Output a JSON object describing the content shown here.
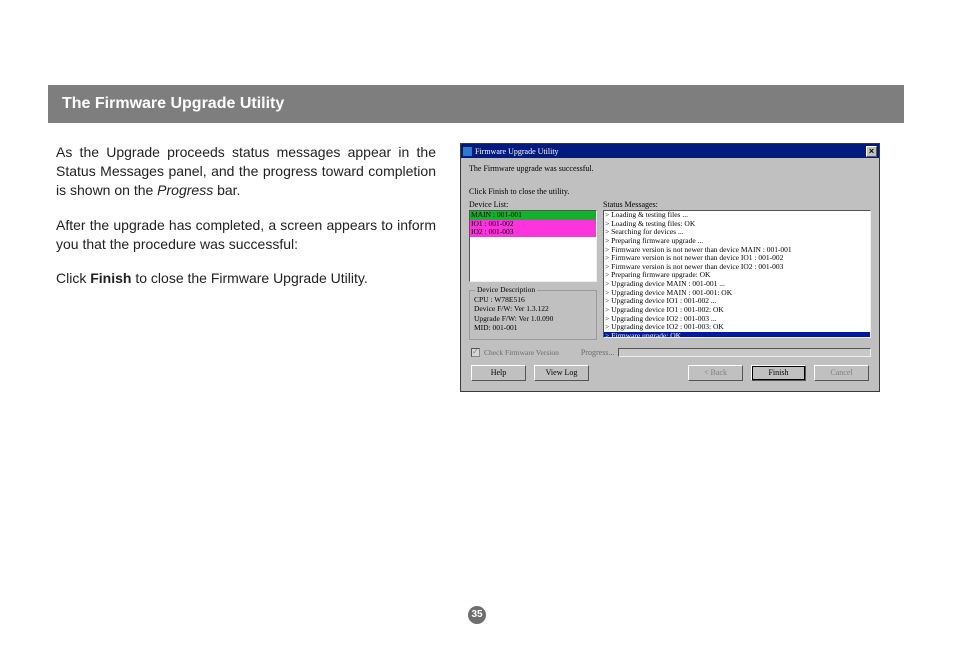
{
  "header": {
    "title": "The Firmware Upgrade Utility"
  },
  "doc": {
    "p1_a": "As the Upgrade proceeds status messages appear in the Status Messages panel, and the progress toward completion is shown on the ",
    "p1_progress": "Progress",
    "p1_b": " bar.",
    "p2": "After the upgrade has completed, a screen appears to inform you that the procedure was successful:",
    "p3_a": "Click ",
    "p3_finish": "Finish",
    "p3_b": " to close the Firmware Upgrade Utility."
  },
  "win": {
    "title": "Firmware Upgrade Utility",
    "close_glyph": "×",
    "success": "The Firmware upgrade was successful.",
    "instruction": "Click Finish to close the utility.",
    "device_label": "Device List:",
    "status_label": "Status Messages:",
    "devices": [
      {
        "text": "MAIN : 001-001",
        "hl": "hl-green"
      },
      {
        "text": "IO1 : 001-002",
        "hl": "hl-mag"
      },
      {
        "text": "IO2 : 001-003",
        "hl": "hl-mag"
      }
    ],
    "status": [
      {
        "text": "> Loading & testing files ..."
      },
      {
        "text": "> Loading & testing files: OK"
      },
      {
        "text": "> Searching for devices ..."
      },
      {
        "text": "> Preparing firmware upgrade ..."
      },
      {
        "text": "> Firmware version is not newer than device MAIN : 001-001"
      },
      {
        "text": "> Firmware version is not newer than device IO1 : 001-002"
      },
      {
        "text": "> Firmware version is not newer than device IO2 : 001-003"
      },
      {
        "text": "> Preparing firmware upgrade: OK"
      },
      {
        "text": "> Upgrading device MAIN : 001-001 ..."
      },
      {
        "text": "> Upgrading device MAIN : 001-001: OK"
      },
      {
        "text": "> Upgrading device IO1 : 001-002 ..."
      },
      {
        "text": "> Upgrading device IO1 : 001-002: OK"
      },
      {
        "text": "> Upgrading device IO2 : 001-003 ..."
      },
      {
        "text": "> Upgrading device IO2 : 001-003: OK"
      },
      {
        "text": "> Firmware upgrade: OK",
        "sel": true
      }
    ],
    "desc_legend": "Device Description",
    "desc_lines": {
      "l1": "CPU : W78E516",
      "l2": "Device F/W: Ver 1.3.122",
      "l3": "Upgrade F/W: Ver 1.0.090",
      "l4": "MID: 001-001"
    },
    "check_label": "Check Firmware Version",
    "progress_label": "Progress...",
    "buttons": {
      "help": "Help",
      "viewlog": "View Log",
      "back": "< Back",
      "finish": "Finish",
      "cancel": "Cancel"
    }
  },
  "page_number": "35"
}
